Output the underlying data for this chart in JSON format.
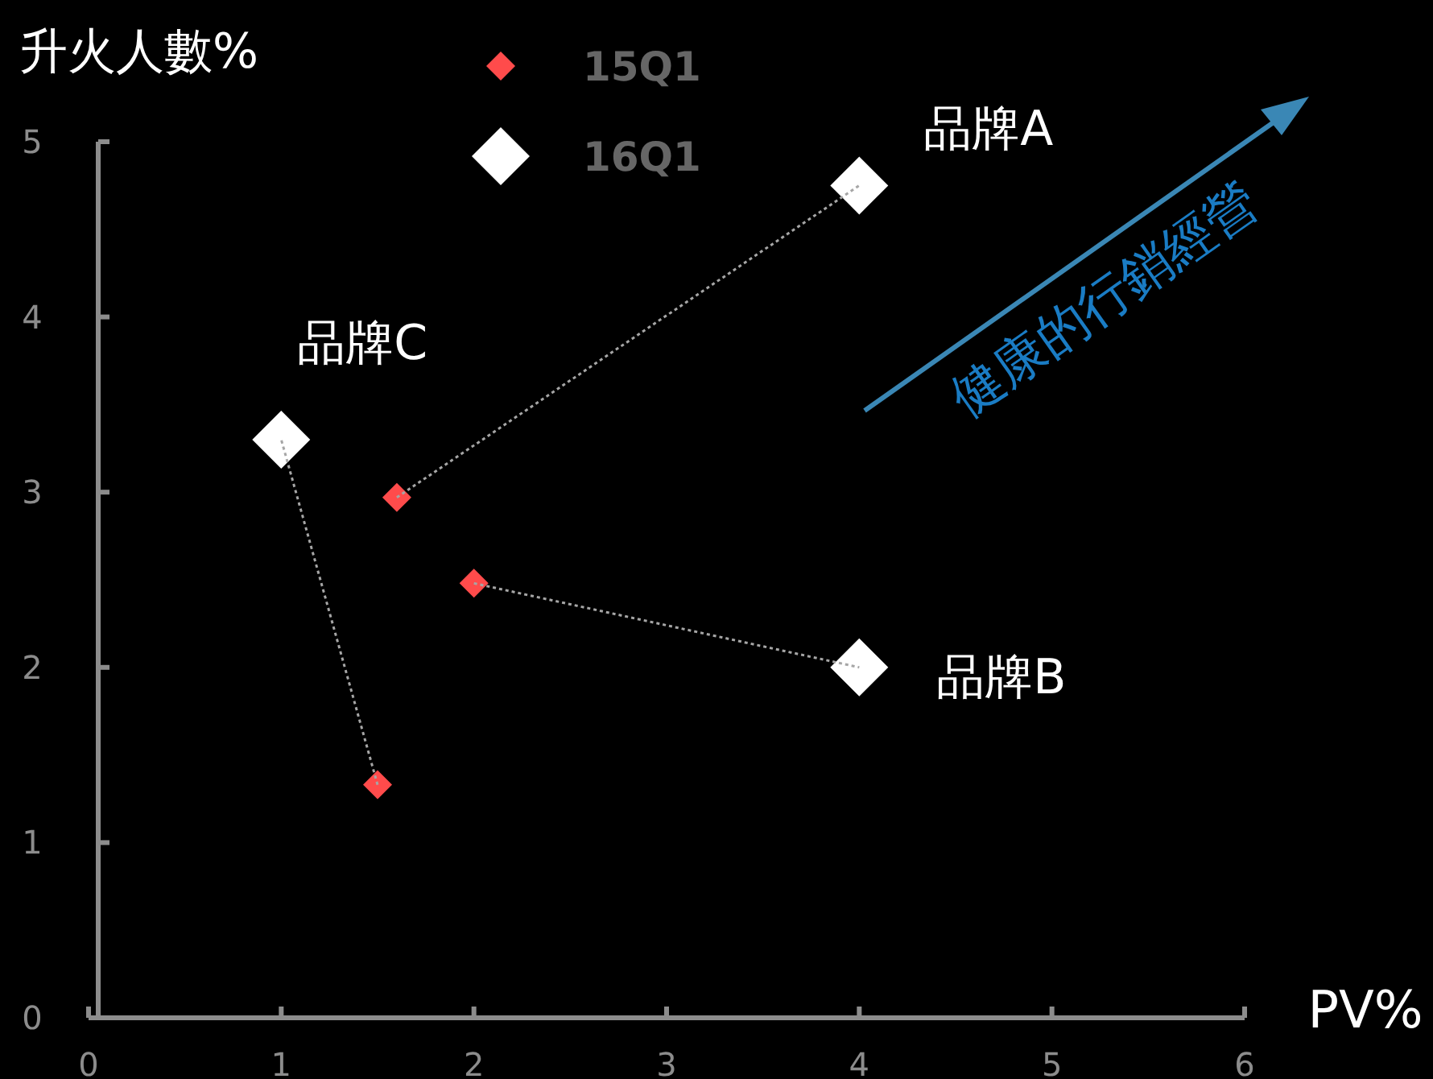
{
  "chart_data": {
    "type": "scatter",
    "xlabel": "PV%",
    "ylabel": "升火人數%",
    "xlim": [
      0,
      6
    ],
    "xticks": [
      0,
      1,
      2,
      3,
      4,
      5,
      6
    ],
    "ylim": [
      0,
      5
    ],
    "yticks": [
      0,
      1,
      2,
      3,
      4,
      5
    ],
    "grid": false,
    "legend": "top",
    "marker": "diamond",
    "series": [
      {
        "type": "line",
        "color": "#a6a6a6",
        "line_style": "dotted",
        "marker": "none",
        "x": [
          1.6,
          4
        ],
        "values": [
          2.97,
          4.75
        ]
      },
      {
        "type": "line",
        "color": "#a6a6a6",
        "line_style": "dotted",
        "marker": "none",
        "x": [
          2.0,
          4
        ],
        "values": [
          2.48,
          2.0
        ]
      },
      {
        "type": "line",
        "color": "#a6a6a6",
        "line_style": "dotted",
        "marker": "none",
        "x": [
          1.5,
          1.0
        ],
        "values": [
          1.33,
          3.3
        ]
      },
      {
        "name": "15Q1",
        "color": "#ff4b4b",
        "x": [
          1.6,
          2.0,
          1.5
        ],
        "values": [
          2.97,
          2.48,
          1.33
        ]
      },
      {
        "name": "16Q1",
        "color": "#ffffff",
        "x": [
          4,
          4,
          1.0
        ],
        "values": [
          4.75,
          2.0,
          3.3
        ]
      }
    ],
    "annotations": [
      "品牌A",
      "品牌B",
      "品牌C",
      "健康的行銷經營"
    ]
  }
}
